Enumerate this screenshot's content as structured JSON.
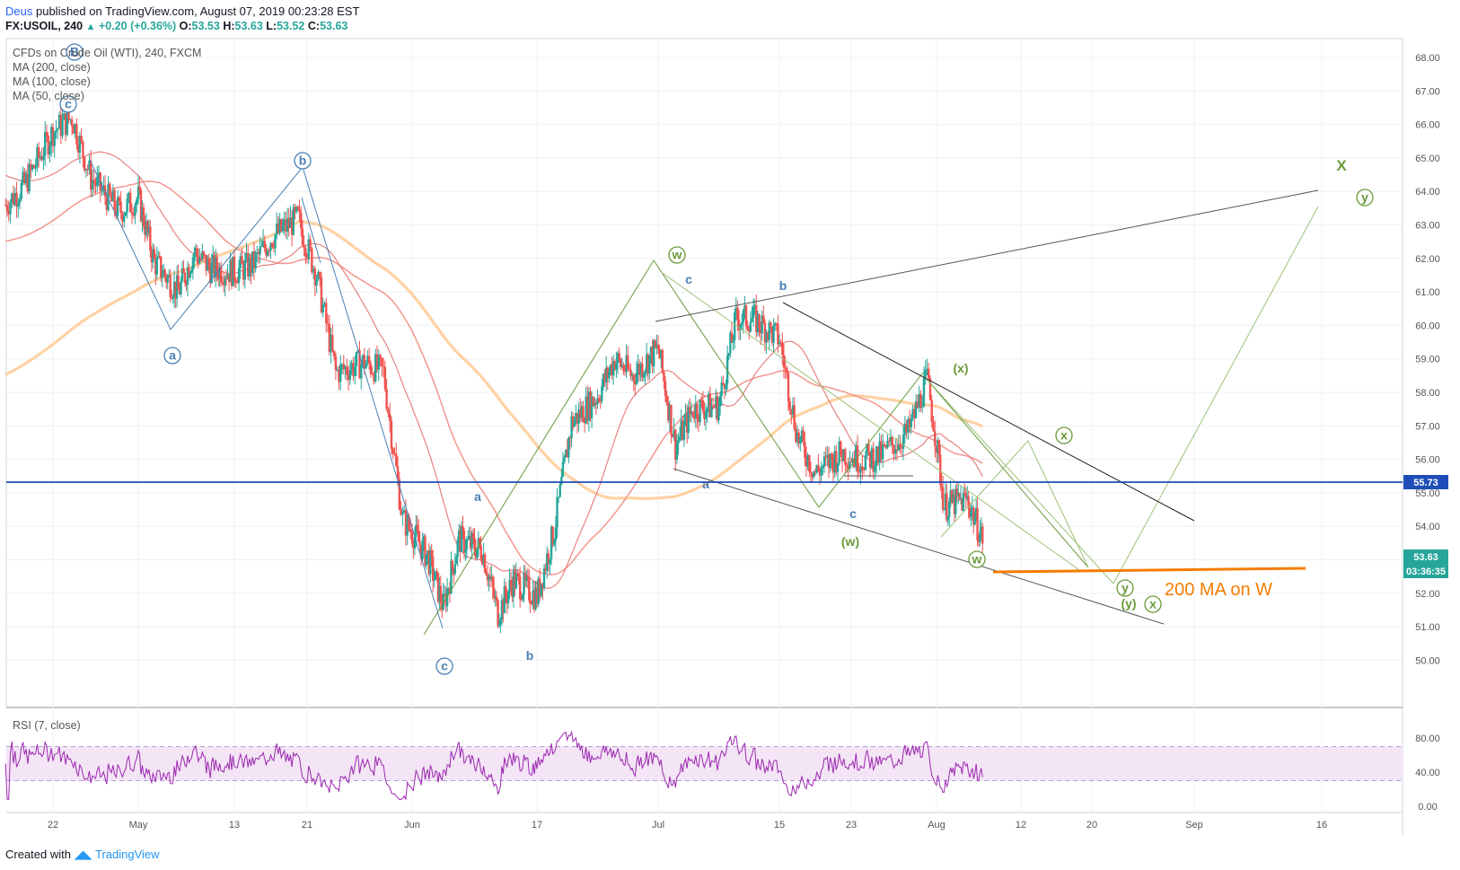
{
  "header": {
    "author": "Deus",
    "published_text": "published on TradingView.com, August 07, 2019 00:23:28 EST",
    "symbol": "FX:USOIL, 240",
    "change": "+0.20 (+0.36%)",
    "o_label": "O:",
    "o": "53.53",
    "h_label": "H:",
    "h": "53.63",
    "l_label": "L:",
    "l": "53.52",
    "c_label": "C:",
    "c": "53.63"
  },
  "legend": {
    "title": "CFDs on Crude Oil (WTI), 240, FXCM",
    "ma200": "MA (200, close)",
    "ma100": "MA (100, close)",
    "ma50": "MA (50, close)"
  },
  "rsi_label": "RSI (7, close)",
  "price_axis": [
    "68.00",
    "67.00",
    "66.00",
    "65.00",
    "64.00",
    "63.00",
    "62.00",
    "61.00",
    "60.00",
    "59.00",
    "58.00",
    "57.00",
    "56.00",
    "55.00",
    "54.00",
    "53.00",
    "52.00",
    "51.00",
    "50.00"
  ],
  "rsi_axis": [
    "80.00",
    "40.00",
    "0.00"
  ],
  "time_axis": [
    "22",
    "May",
    "13",
    "21",
    "Jun",
    "17",
    "Jul",
    "15",
    "23",
    "Aug",
    "12",
    "20",
    "Sep",
    "16"
  ],
  "badges": {
    "level": "55.73",
    "price": "53.63",
    "countdown": "03:36:35"
  },
  "annotations": {
    "note": "200 MA on W",
    "wave_labels": [
      "B",
      "c",
      "b",
      "a",
      "c",
      "a",
      "b",
      "w",
      "c",
      "b",
      "a",
      "c",
      "(w)",
      "(x)",
      "x",
      "w",
      "y",
      "(y)",
      "x",
      "X",
      "y"
    ]
  },
  "colors": {
    "up": "#26a69a",
    "down": "#ef5350",
    "ma200": "#ffcc99",
    "ma100": "#f28b82",
    "ma50": "#e57373",
    "rsi": "#9c27b0",
    "rsi_band": "#f3e5f5",
    "level_line": "#1e4db7",
    "orange": "#f57c00",
    "wave_blue": "#4a7fb5",
    "wave_green": "#6a9a3a"
  },
  "footer": {
    "created": "Created with",
    "brand": "TradingView"
  },
  "chart_data": {
    "type": "candlestick",
    "symbol": "FX:USOIL",
    "interval": "240",
    "ylim": [
      49.5,
      68.3
    ],
    "horizontal_level": 55.73,
    "last_price": 53.63,
    "x_ticks": [
      "22",
      "May",
      "13",
      "21",
      "Jun",
      "17",
      "Jul",
      "15",
      "23",
      "Aug",
      "12",
      "20",
      "Sep",
      "16"
    ],
    "close_path": [
      {
        "x": "Apr 17",
        "y": 63.6
      },
      {
        "x": "Apr 19",
        "y": 64.2
      },
      {
        "x": "Apr 22",
        "y": 65.8
      },
      {
        "x": "Apr 24",
        "y": 66.2
      },
      {
        "x": "Apr 26",
        "y": 64.4
      },
      {
        "x": "Apr 29",
        "y": 63.4
      },
      {
        "x": "May 1",
        "y": 63.8
      },
      {
        "x": "May 3",
        "y": 61.9
      },
      {
        "x": "May 6",
        "y": 61.0
      },
      {
        "x": "May 8",
        "y": 62.2
      },
      {
        "x": "May 10",
        "y": 61.7
      },
      {
        "x": "May 13",
        "y": 61.6
      },
      {
        "x": "May 15",
        "y": 61.8
      },
      {
        "x": "May 17",
        "y": 62.6
      },
      {
        "x": "May 20",
        "y": 63.2
      },
      {
        "x": "May 22",
        "y": 61.5
      },
      {
        "x": "May 24",
        "y": 58.6
      },
      {
        "x": "May 27",
        "y": 58.9
      },
      {
        "x": "May 29",
        "y": 58.6
      },
      {
        "x": "May 31",
        "y": 54.2
      },
      {
        "x": "Jun 3",
        "y": 53.1
      },
      {
        "x": "Jun 5",
        "y": 51.6
      },
      {
        "x": "Jun 7",
        "y": 53.6
      },
      {
        "x": "Jun 10",
        "y": 53.3
      },
      {
        "x": "Jun 12",
        "y": 51.4
      },
      {
        "x": "Jun 14",
        "y": 52.4
      },
      {
        "x": "Jun 17",
        "y": 51.9
      },
      {
        "x": "Jun 19",
        "y": 53.9
      },
      {
        "x": "Jun 21",
        "y": 57.1
      },
      {
        "x": "Jun 24",
        "y": 57.9
      },
      {
        "x": "Jun 26",
        "y": 59.0
      },
      {
        "x": "Jun 28",
        "y": 58.5
      },
      {
        "x": "Jul 1",
        "y": 59.3
      },
      {
        "x": "Jul 3",
        "y": 56.4
      },
      {
        "x": "Jul 5",
        "y": 57.5
      },
      {
        "x": "Jul 8",
        "y": 57.6
      },
      {
        "x": "Jul 10",
        "y": 60.2
      },
      {
        "x": "Jul 12",
        "y": 60.2
      },
      {
        "x": "Jul 15",
        "y": 59.6
      },
      {
        "x": "Jul 17",
        "y": 56.7
      },
      {
        "x": "Jul 19",
        "y": 55.6
      },
      {
        "x": "Jul 22",
        "y": 56.2
      },
      {
        "x": "Jul 24",
        "y": 56.0
      },
      {
        "x": "Jul 26",
        "y": 56.1
      },
      {
        "x": "Jul 29",
        "y": 56.8
      },
      {
        "x": "Jul 31",
        "y": 58.4
      },
      {
        "x": "Aug 2",
        "y": 54.6
      },
      {
        "x": "Aug 5",
        "y": 54.8
      },
      {
        "x": "Aug 7",
        "y": 53.63
      }
    ],
    "indicators": [
      "MA (200, close)",
      "MA (100, close)",
      "MA (50, close)",
      "RSI (7, close)"
    ],
    "rsi_ylim": [
      0,
      100
    ],
    "rsi_levels": [
      70,
      30
    ]
  }
}
